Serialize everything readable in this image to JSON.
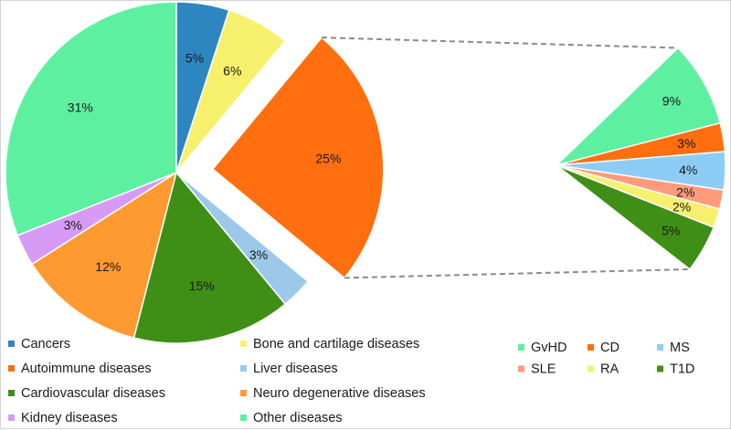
{
  "chart_data": [
    {
      "type": "pie",
      "series": [
        {
          "values": [
            {
              "label": "Cancers",
              "value": 5,
              "display": "5%",
              "color": "#2e86c1"
            },
            {
              "label": "Bone and cartilage diseases",
              "value": 6,
              "display": "6%",
              "color": "#f7f06d"
            },
            {
              "label": "Autoimmune diseases",
              "value": 25,
              "display": "25%",
              "color": "#ff6f0f",
              "exploded": true
            },
            {
              "label": "Liver diseases",
              "value": 3,
              "display": "3%",
              "color": "#9cc9ea"
            },
            {
              "label": "Cardiovascular diseases",
              "value": 15,
              "display": "15%",
              "color": "#3f8f16"
            },
            {
              "label": "Neuro degenerative diseases",
              "value": 12,
              "display": "12%",
              "color": "#ff9a30"
            },
            {
              "label": "Kidney diseases",
              "value": 3,
              "display": "3%",
              "color": "#d79af5"
            },
            {
              "label": "Other diseases",
              "value": 31,
              "display": "31%",
              "color": "#5df0a0"
            }
          ]
        }
      ],
      "legend": "bottom"
    },
    {
      "type": "pie",
      "series": [
        {
          "values": [
            {
              "label": "GvHD",
              "value": 9,
              "display": "9%",
              "color": "#5df0a0"
            },
            {
              "label": "CD",
              "value": 3,
              "display": "3%",
              "color": "#ff6f0f"
            },
            {
              "label": "MS",
              "value": 4,
              "display": "4%",
              "color": "#8dcdf5"
            },
            {
              "label": "SLE",
              "value": 2,
              "display": "2%",
              "color": "#ff9b7a"
            },
            {
              "label": "RA",
              "value": 2,
              "display": "2%",
              "color": "#f7f06d"
            },
            {
              "label": "T1D",
              "value": 5,
              "display": "5%",
              "color": "#3f8f16"
            }
          ]
        }
      ],
      "legend": "bottom-right"
    }
  ]
}
